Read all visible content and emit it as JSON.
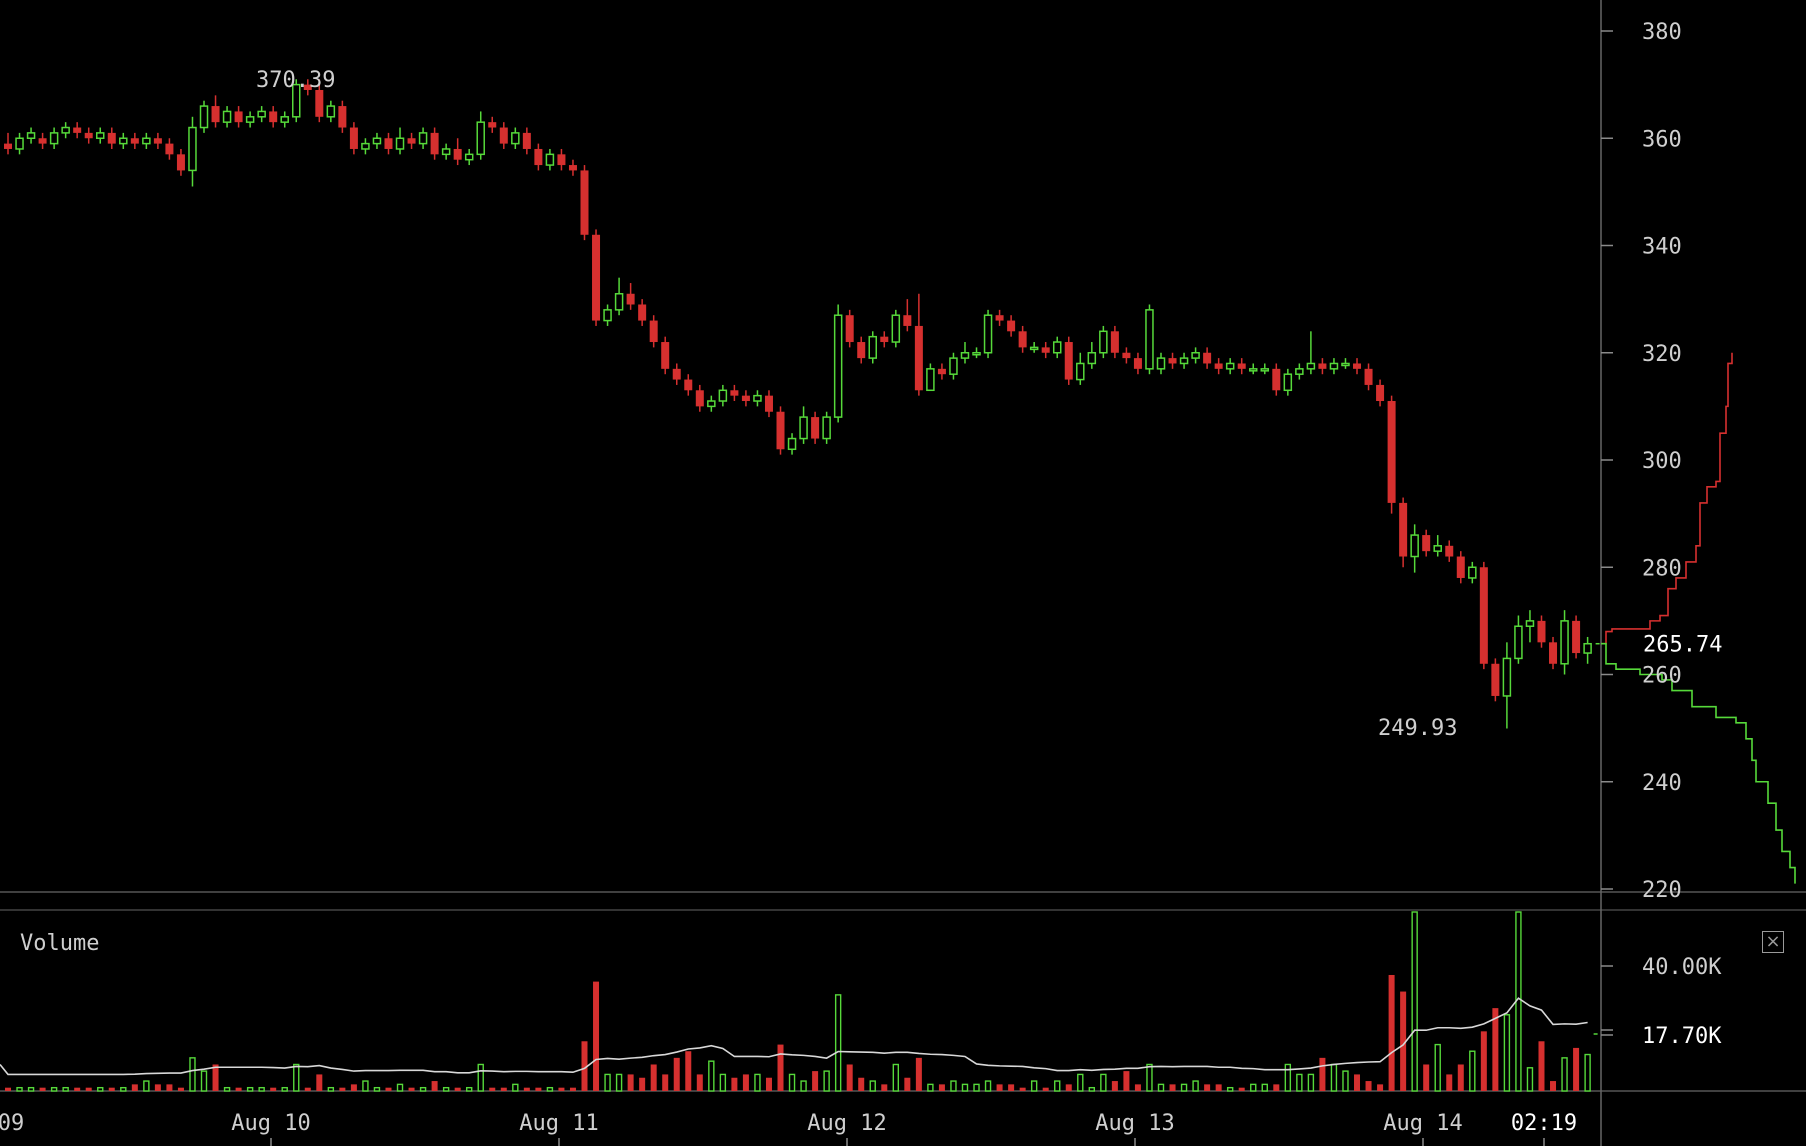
{
  "colors": {
    "up": "#56d93a",
    "down": "#d6302f",
    "ma": "#d8d8d8",
    "axis": "#8a8a8a",
    "text": "#cfcfcf"
  },
  "chart_data": [
    {
      "type": "candlestick",
      "price_axis": {
        "ylim": [
          220,
          386
        ],
        "ticks": [
          "380",
          "360",
          "340",
          "320",
          "300",
          "280",
          "260",
          "240",
          "220"
        ]
      },
      "time_axis": {
        "labels": [
          "09",
          "Aug 10",
          "Aug 11",
          "Aug 12",
          "Aug 13",
          "Aug 14",
          "02:19"
        ]
      },
      "annotations": {
        "high": "370.39",
        "low": "249.93",
        "last": "265.74"
      },
      "candles": [
        [
          359,
          358,
          361,
          357
        ],
        [
          358,
          360,
          361,
          357
        ],
        [
          360,
          361,
          362,
          359
        ],
        [
          360,
          359,
          361,
          358
        ],
        [
          359,
          361,
          362,
          358
        ],
        [
          361,
          362,
          363,
          360
        ],
        [
          362,
          361,
          363,
          360
        ],
        [
          361,
          360,
          362,
          359
        ],
        [
          360,
          361,
          362,
          359
        ],
        [
          361,
          359,
          362,
          358
        ],
        [
          359,
          360,
          361,
          358
        ],
        [
          360,
          359,
          361,
          358
        ],
        [
          359,
          360,
          361,
          358
        ],
        [
          360,
          359,
          361,
          358
        ],
        [
          359,
          357,
          360,
          356
        ],
        [
          357,
          354,
          358,
          353
        ],
        [
          354,
          362,
          364,
          351
        ],
        [
          362,
          366,
          367,
          361
        ],
        [
          366,
          363,
          368,
          362
        ],
        [
          363,
          365,
          366,
          362
        ],
        [
          365,
          363,
          366,
          362
        ],
        [
          363,
          364,
          365,
          362
        ],
        [
          364,
          365,
          366,
          363
        ],
        [
          365,
          363,
          366,
          362
        ],
        [
          363,
          364,
          365,
          362
        ],
        [
          364,
          370,
          371,
          363
        ],
        [
          370,
          369,
          371,
          368
        ],
        [
          369,
          364,
          371,
          363
        ],
        [
          364,
          366,
          367,
          363
        ],
        [
          366,
          362,
          367,
          361
        ],
        [
          362,
          358,
          363,
          357
        ],
        [
          358,
          359,
          360,
          357
        ],
        [
          359,
          360,
          361,
          358
        ],
        [
          360,
          358,
          361,
          357
        ],
        [
          358,
          360,
          362,
          357
        ],
        [
          360,
          359,
          361,
          358
        ],
        [
          359,
          361,
          362,
          358
        ],
        [
          361,
          357,
          362,
          356
        ],
        [
          357,
          358,
          359,
          356
        ],
        [
          358,
          356,
          360,
          355
        ],
        [
          356,
          357,
          358,
          355
        ],
        [
          357,
          363,
          365,
          356
        ],
        [
          363,
          362,
          364,
          361
        ],
        [
          362,
          359,
          363,
          358
        ],
        [
          359,
          361,
          362,
          358
        ],
        [
          361,
          358,
          362,
          357
        ],
        [
          358,
          355,
          359,
          354
        ],
        [
          355,
          357,
          358,
          354
        ],
        [
          357,
          355,
          358,
          354
        ],
        [
          355,
          354,
          356,
          353
        ],
        [
          354,
          342,
          355,
          341
        ],
        [
          342,
          326,
          343,
          325
        ],
        [
          326,
          328,
          329,
          325
        ],
        [
          328,
          331,
          334,
          327
        ],
        [
          331,
          329,
          333,
          328
        ],
        [
          329,
          326,
          330,
          325
        ],
        [
          326,
          322,
          327,
          321
        ],
        [
          322,
          317,
          323,
          316
        ],
        [
          317,
          315,
          318,
          314
        ],
        [
          315,
          313,
          316,
          312
        ],
        [
          313,
          310,
          314,
          309
        ],
        [
          310,
          311,
          312,
          309
        ],
        [
          311,
          313,
          314,
          310
        ],
        [
          313,
          312,
          314,
          311
        ],
        [
          312,
          311,
          313,
          310
        ],
        [
          311,
          312,
          313,
          310
        ],
        [
          312,
          309,
          313,
          308
        ],
        [
          309,
          302,
          310,
          301
        ],
        [
          302,
          304,
          305,
          301
        ],
        [
          304,
          308,
          310,
          303
        ],
        [
          308,
          304,
          309,
          303
        ],
        [
          304,
          308,
          309,
          303
        ],
        [
          308,
          327,
          329,
          307
        ],
        [
          327,
          322,
          328,
          321
        ],
        [
          322,
          319,
          323,
          318
        ],
        [
          319,
          323,
          324,
          318
        ],
        [
          323,
          322,
          324,
          321
        ],
        [
          322,
          327,
          328,
          321
        ],
        [
          327,
          325,
          330,
          324
        ],
        [
          325,
          313,
          331,
          312
        ],
        [
          313,
          317,
          318,
          313
        ],
        [
          317,
          316,
          318,
          315
        ],
        [
          316,
          319,
          320,
          315
        ],
        [
          319,
          320,
          322,
          318
        ],
        [
          320,
          320,
          321,
          319
        ],
        [
          320,
          327,
          328,
          319
        ],
        [
          327,
          326,
          328,
          325
        ],
        [
          326,
          324,
          327,
          323
        ],
        [
          324,
          321,
          325,
          320
        ],
        [
          321,
          321,
          322,
          320
        ],
        [
          321,
          320,
          322,
          319
        ],
        [
          320,
          322,
          323,
          319
        ],
        [
          322,
          315,
          323,
          314
        ],
        [
          315,
          318,
          320,
          314
        ],
        [
          318,
          320,
          322,
          317
        ],
        [
          320,
          324,
          325,
          319
        ],
        [
          324,
          320,
          325,
          319
        ],
        [
          320,
          319,
          321,
          318
        ],
        [
          319,
          317,
          320,
          316
        ],
        [
          317,
          328,
          329,
          316
        ],
        [
          317,
          319,
          320,
          316
        ],
        [
          319,
          318,
          320,
          317
        ],
        [
          318,
          319,
          320,
          317
        ],
        [
          319,
          320,
          321,
          318
        ],
        [
          320,
          318,
          321,
          317
        ],
        [
          318,
          317,
          319,
          316
        ],
        [
          317,
          318,
          319,
          316
        ],
        [
          318,
          317,
          319,
          316
        ],
        [
          317,
          317,
          318,
          316
        ],
        [
          317,
          317,
          318,
          316
        ],
        [
          317,
          313,
          318,
          312
        ],
        [
          313,
          316,
          317,
          312
        ],
        [
          316,
          317,
          318,
          315
        ],
        [
          317,
          318,
          324,
          316
        ],
        [
          318,
          317,
          319,
          316
        ],
        [
          317,
          318,
          319,
          316
        ],
        [
          318,
          318,
          319,
          317
        ],
        [
          318,
          317,
          319,
          316
        ],
        [
          317,
          314,
          318,
          313
        ],
        [
          314,
          311,
          315,
          310
        ],
        [
          311,
          292,
          312,
          290
        ],
        [
          292,
          282,
          293,
          280
        ],
        [
          282,
          286,
          288,
          279
        ],
        [
          286,
          283,
          287,
          282
        ],
        [
          283,
          284,
          286,
          282
        ],
        [
          284,
          282,
          285,
          281
        ],
        [
          282,
          278,
          283,
          277
        ],
        [
          278,
          280,
          281,
          277
        ],
        [
          280,
          262,
          281,
          261
        ],
        [
          262,
          256,
          263,
          255
        ],
        [
          256,
          263,
          266,
          249.93
        ],
        [
          263,
          269,
          271,
          262
        ],
        [
          269,
          270,
          272,
          266
        ],
        [
          270,
          266,
          271,
          265
        ],
        [
          266,
          262,
          267,
          261
        ],
        [
          262,
          270,
          272,
          260
        ],
        [
          270,
          264,
          271,
          263
        ],
        [
          264,
          265.74,
          267,
          262
        ]
      ]
    },
    {
      "type": "bar",
      "title": "Volume",
      "y_ticks": [
        "40.00K",
        "17.70K"
      ],
      "ylim": [
        0,
        54
      ],
      "volumes": [
        1,
        1,
        1,
        1,
        1,
        1,
        1,
        1,
        1,
        1,
        1,
        2,
        3,
        2,
        2,
        1,
        10,
        6,
        8,
        1,
        1,
        1,
        1,
        1,
        1,
        8,
        1,
        5,
        1,
        1,
        2,
        3,
        1,
        1,
        2,
        1,
        1,
        3,
        1,
        1,
        1,
        8,
        1,
        1,
        2,
        1,
        1,
        1,
        1,
        1,
        15,
        33,
        5,
        5,
        5,
        4,
        8,
        5,
        10,
        12,
        5,
        9,
        5,
        4,
        5,
        5,
        4,
        14,
        5,
        3,
        6,
        6,
        29,
        8,
        4,
        3,
        2,
        8,
        4,
        10,
        2,
        2,
        3,
        2,
        2,
        3,
        2,
        2,
        1,
        3,
        1,
        3,
        2,
        5,
        1,
        5,
        3,
        6,
        2,
        8,
        2,
        2,
        2,
        3,
        2,
        2,
        1,
        1,
        2,
        2,
        2,
        8,
        5,
        5,
        10,
        8,
        6,
        5,
        3,
        2,
        35,
        30,
        55,
        8,
        14,
        5,
        8,
        12,
        18,
        25,
        23,
        55,
        7,
        15,
        3,
        10,
        13,
        11
      ]
    }
  ]
}
